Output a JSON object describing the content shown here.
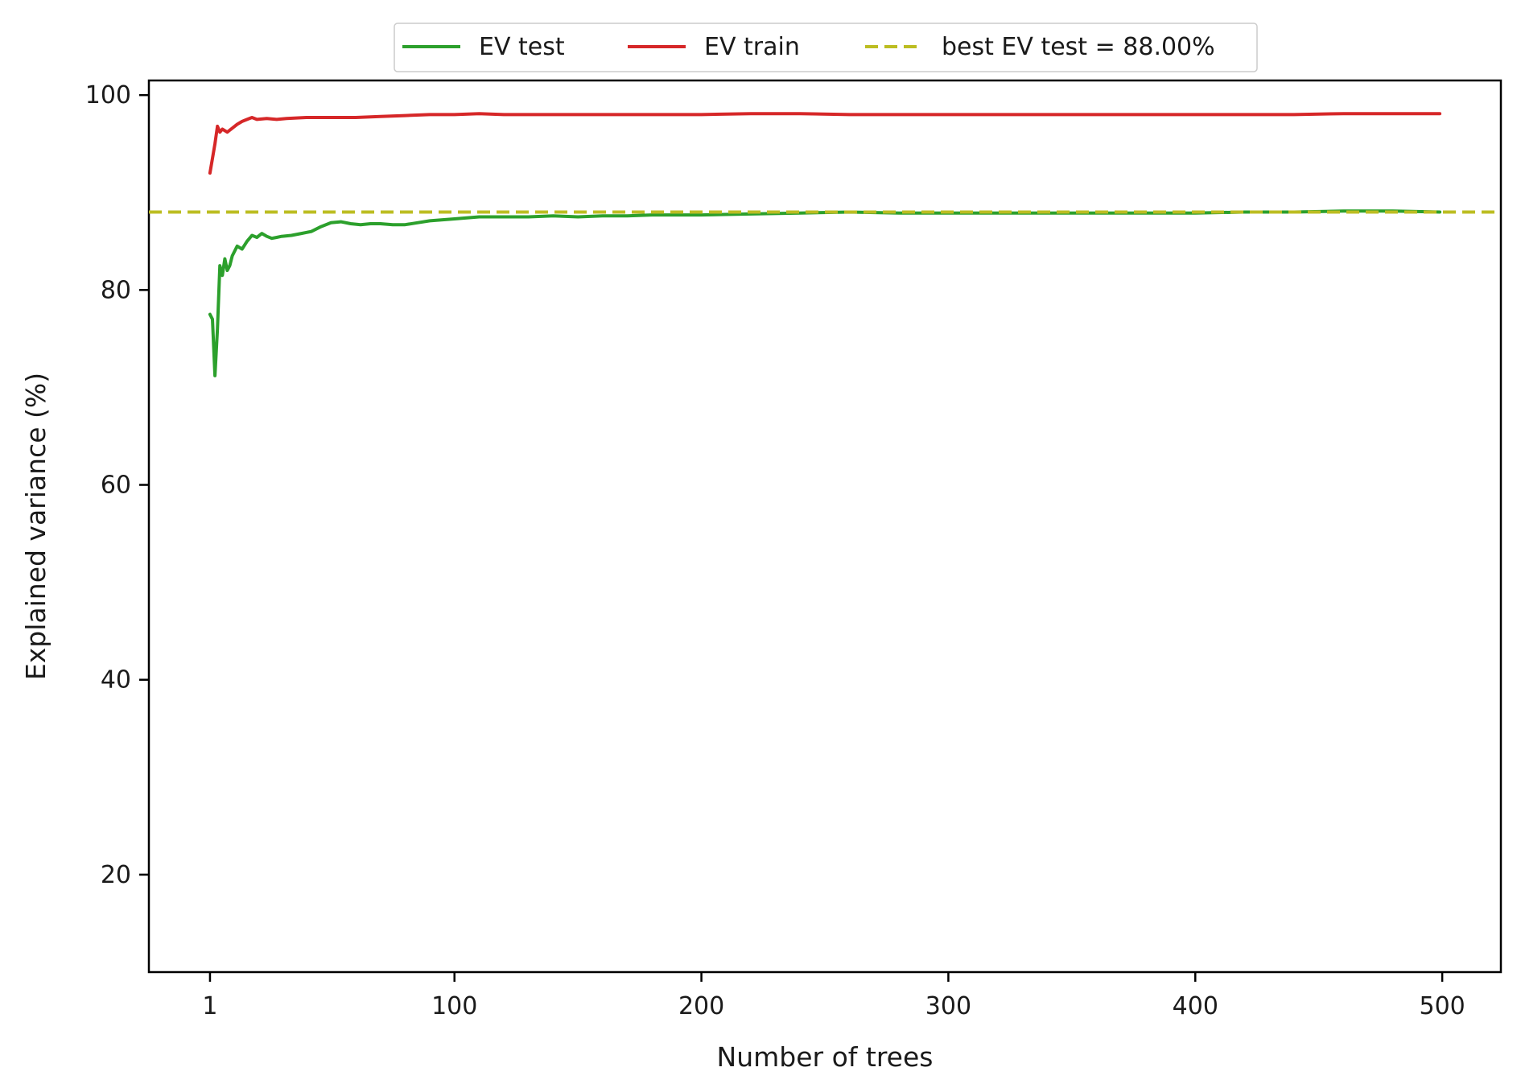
{
  "chart_data": {
    "type": "line",
    "title": "",
    "xlabel": "Number of trees",
    "ylabel": "Explained variance (%)",
    "xlim": [
      -23.75,
      523.75
    ],
    "ylim": [
      10,
      101.5
    ],
    "xticks": [
      1,
      100,
      200,
      300,
      400,
      500
    ],
    "yticks": [
      20,
      40,
      60,
      80,
      100
    ],
    "grid": false,
    "legend_position": "top-center (outside, above plot)",
    "series": [
      {
        "name": "EV test",
        "color": "#2ca02c",
        "style": "solid",
        "points": [
          [
            1,
            77.5
          ],
          [
            2,
            77.0
          ],
          [
            3,
            71.2
          ],
          [
            4,
            76.0
          ],
          [
            5,
            82.5
          ],
          [
            6,
            81.5
          ],
          [
            7,
            83.2
          ],
          [
            8,
            82.0
          ],
          [
            9,
            82.5
          ],
          [
            10,
            83.5
          ],
          [
            12,
            84.5
          ],
          [
            14,
            84.2
          ],
          [
            16,
            85.0
          ],
          [
            18,
            85.6
          ],
          [
            20,
            85.4
          ],
          [
            22,
            85.8
          ],
          [
            24,
            85.5
          ],
          [
            26,
            85.3
          ],
          [
            28,
            85.4
          ],
          [
            30,
            85.5
          ],
          [
            34,
            85.6
          ],
          [
            38,
            85.8
          ],
          [
            42,
            86.0
          ],
          [
            46,
            86.5
          ],
          [
            50,
            86.9
          ],
          [
            54,
            87.0
          ],
          [
            58,
            86.8
          ],
          [
            62,
            86.7
          ],
          [
            66,
            86.8
          ],
          [
            70,
            86.8
          ],
          [
            75,
            86.7
          ],
          [
            80,
            86.7
          ],
          [
            85,
            86.9
          ],
          [
            90,
            87.1
          ],
          [
            100,
            87.3
          ],
          [
            110,
            87.5
          ],
          [
            120,
            87.5
          ],
          [
            130,
            87.5
          ],
          [
            140,
            87.6
          ],
          [
            150,
            87.5
          ],
          [
            160,
            87.6
          ],
          [
            170,
            87.6
          ],
          [
            180,
            87.7
          ],
          [
            190,
            87.7
          ],
          [
            200,
            87.7
          ],
          [
            220,
            87.8
          ],
          [
            240,
            87.9
          ],
          [
            260,
            88.0
          ],
          [
            280,
            87.9
          ],
          [
            300,
            87.9
          ],
          [
            320,
            87.9
          ],
          [
            340,
            87.9
          ],
          [
            360,
            87.9
          ],
          [
            380,
            87.9
          ],
          [
            400,
            87.9
          ],
          [
            420,
            88.0
          ],
          [
            440,
            88.0
          ],
          [
            460,
            88.1
          ],
          [
            480,
            88.1
          ],
          [
            499,
            88.0
          ]
        ]
      },
      {
        "name": "EV train",
        "color": "#d62728",
        "style": "solid",
        "points": [
          [
            1,
            92.0
          ],
          [
            2,
            93.5
          ],
          [
            3,
            95.0
          ],
          [
            4,
            96.8
          ],
          [
            5,
            96.2
          ],
          [
            6,
            96.5
          ],
          [
            8,
            96.2
          ],
          [
            10,
            96.6
          ],
          [
            12,
            97.0
          ],
          [
            14,
            97.3
          ],
          [
            16,
            97.5
          ],
          [
            18,
            97.7
          ],
          [
            20,
            97.5
          ],
          [
            24,
            97.6
          ],
          [
            28,
            97.5
          ],
          [
            32,
            97.6
          ],
          [
            40,
            97.7
          ],
          [
            50,
            97.7
          ],
          [
            60,
            97.7
          ],
          [
            70,
            97.8
          ],
          [
            80,
            97.9
          ],
          [
            90,
            98.0
          ],
          [
            100,
            98.0
          ],
          [
            110,
            98.1
          ],
          [
            120,
            98.0
          ],
          [
            140,
            98.0
          ],
          [
            160,
            98.0
          ],
          [
            180,
            98.0
          ],
          [
            200,
            98.0
          ],
          [
            220,
            98.1
          ],
          [
            240,
            98.1
          ],
          [
            260,
            98.0
          ],
          [
            280,
            98.0
          ],
          [
            300,
            98.0
          ],
          [
            320,
            98.0
          ],
          [
            340,
            98.0
          ],
          [
            360,
            98.0
          ],
          [
            380,
            98.0
          ],
          [
            400,
            98.0
          ],
          [
            420,
            98.0
          ],
          [
            440,
            98.0
          ],
          [
            460,
            98.1
          ],
          [
            480,
            98.1
          ],
          [
            499,
            98.1
          ]
        ]
      },
      {
        "name": "best EV test = 88.00%",
        "color": "#bcbd22",
        "style": "dashed",
        "y": 88.0
      }
    ]
  },
  "legend": {
    "items": [
      {
        "label": "EV test",
        "color": "#2ca02c",
        "style": "solid"
      },
      {
        "label": "EV train",
        "color": "#d62728",
        "style": "solid"
      },
      {
        "label": "best EV test = 88.00%",
        "color": "#bcbd22",
        "style": "dashed"
      }
    ]
  }
}
